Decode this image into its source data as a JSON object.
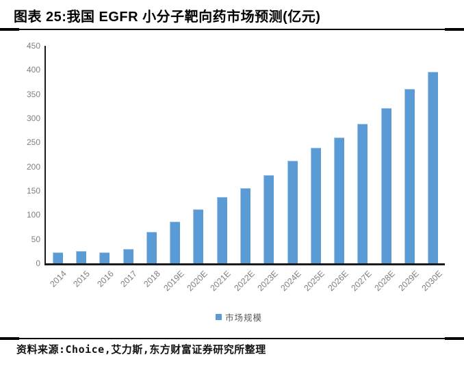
{
  "header": {
    "title": "图表 25:我国 EGFR 小分子靶向药市场预测(亿元)"
  },
  "legend": {
    "label": "市场规模"
  },
  "footer": {
    "source": "资料来源:Choice,艾力斯,东方财富证券研究所整理"
  },
  "colors": {
    "bar": "#5B9BD5",
    "axis": "#1a1a1a",
    "tick_label": "#7f7f7f",
    "legend_text": "#595959",
    "rule": "#000000"
  },
  "chart_data": {
    "type": "bar",
    "title": "我国 EGFR 小分子靶向药市场预测(亿元)",
    "categories": [
      "2014",
      "2015",
      "2016",
      "2017",
      "2018",
      "2019E",
      "2020E",
      "2021E",
      "2022E",
      "2023E",
      "2024E",
      "2025E",
      "2026E",
      "2027E",
      "2028E",
      "2029E",
      "2030E"
    ],
    "series": [
      {
        "name": "市场规模",
        "values": [
          23,
          25,
          22,
          30,
          65,
          87,
          112,
          137,
          156,
          183,
          212,
          239,
          261,
          289,
          321,
          361,
          396
        ]
      }
    ],
    "xlabel": "",
    "ylabel": "",
    "ylim": [
      0,
      450
    ],
    "ytick_step": 50,
    "grid": false,
    "legend_position": "bottom-center"
  }
}
